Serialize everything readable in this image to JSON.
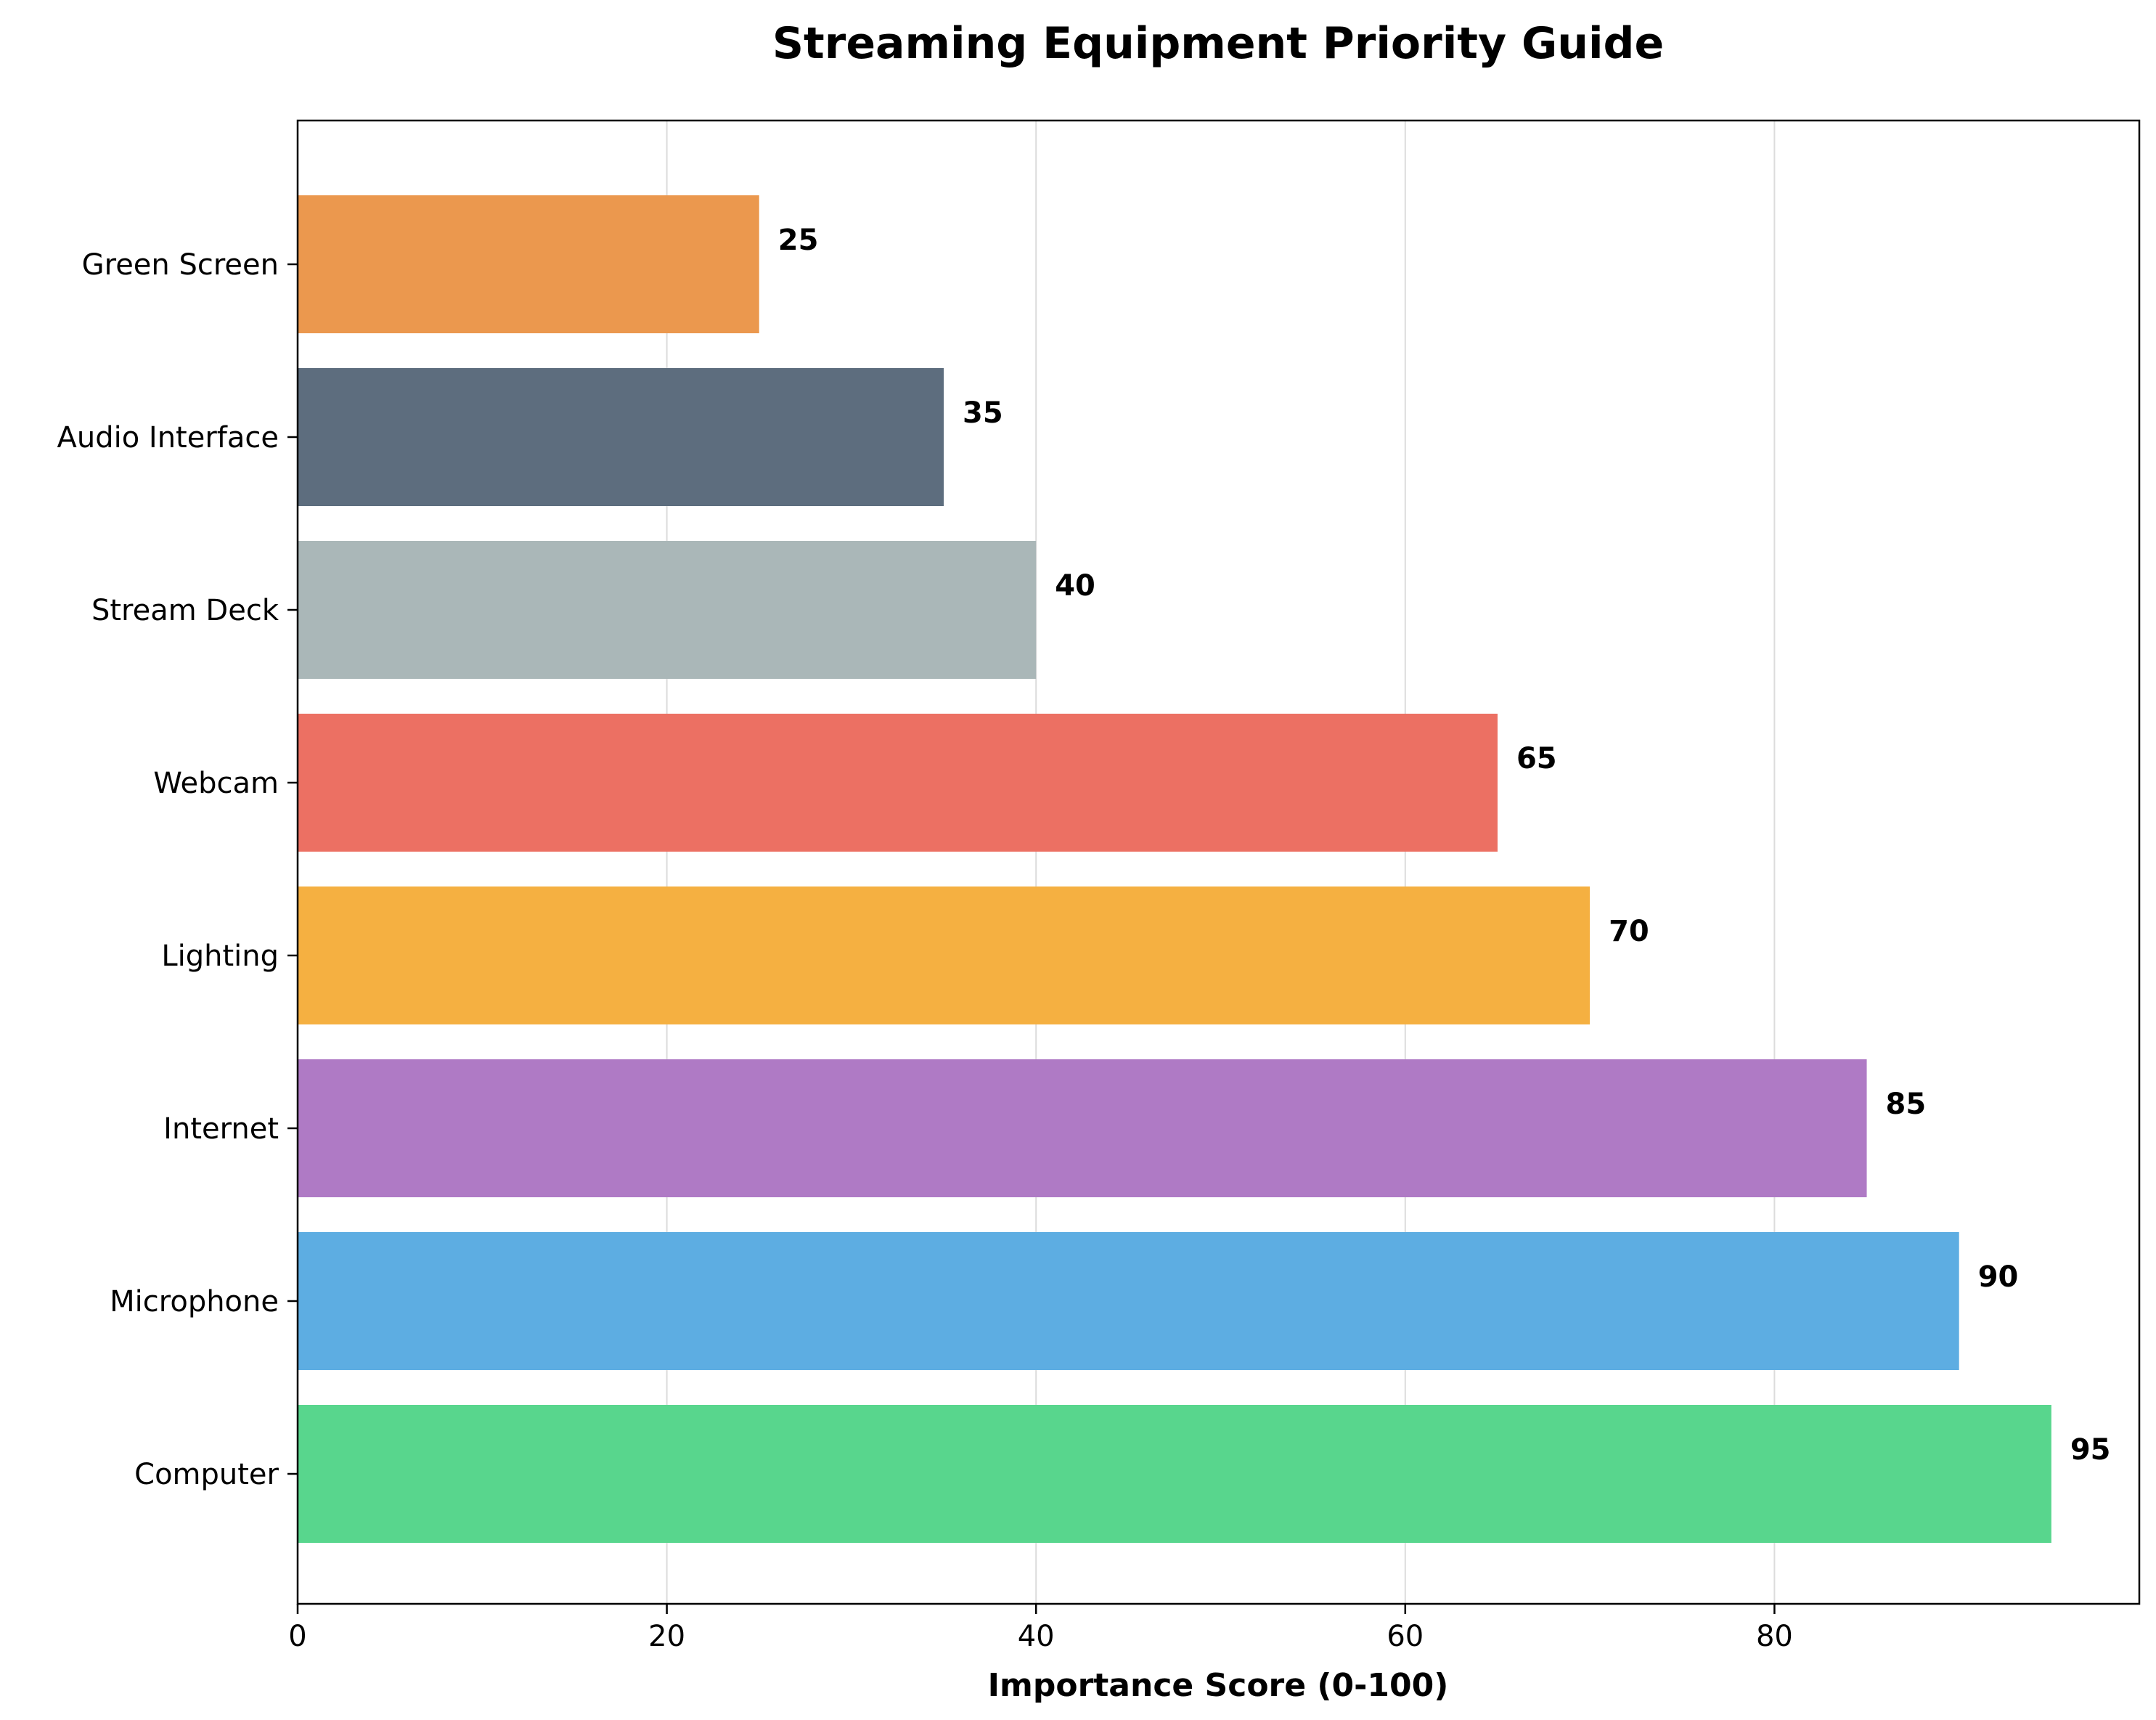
{
  "chart_data": {
    "type": "bar",
    "orientation": "horizontal",
    "title": "Streaming Equipment Priority Guide",
    "xlabel": "Importance Score (0-100)",
    "ylabel": "",
    "xlim": [
      0,
      100
    ],
    "xticks": [
      0,
      20,
      40,
      60,
      80
    ],
    "grid": "vertical",
    "categories": [
      "Computer",
      "Microphone",
      "Internet",
      "Lighting",
      "Webcam",
      "Stream Deck",
      "Audio Interface",
      "Green Screen"
    ],
    "values": [
      95,
      90,
      85,
      70,
      65,
      40,
      35,
      25
    ],
    "colors": [
      "#58d68d",
      "#5dade2",
      "#af7ac5",
      "#f5b041",
      "#ec7063",
      "#aab7b8",
      "#5d6d7e",
      "#eb984e"
    ],
    "data_labels": [
      "95",
      "90",
      "85",
      "70",
      "65",
      "40",
      "35",
      "25"
    ]
  }
}
